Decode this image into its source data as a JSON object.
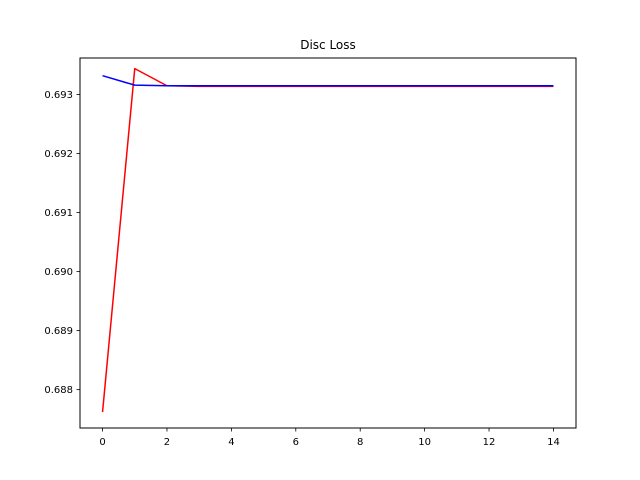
{
  "chart_data": {
    "type": "line",
    "title": "Disc Loss",
    "xlabel": "",
    "ylabel": "",
    "xlim": [
      -0.7,
      14.7
    ],
    "ylim": [
      0.68735,
      0.69362
    ],
    "x_ticks": [
      0,
      2,
      4,
      6,
      8,
      10,
      12,
      14
    ],
    "y_ticks": [
      0.688,
      0.689,
      0.69,
      0.691,
      0.692,
      0.693
    ],
    "grid": false,
    "legend": "none",
    "series": [
      {
        "color": "#ff0000",
        "x": [
          0,
          1,
          2,
          3,
          4,
          5,
          6,
          7,
          8,
          9,
          10,
          11,
          12,
          13,
          14
        ],
        "y": [
          0.68762,
          0.69344,
          0.69315,
          0.69314,
          0.69314,
          0.69314,
          0.69314,
          0.69314,
          0.69314,
          0.69314,
          0.69314,
          0.69314,
          0.69314,
          0.69314,
          0.69314
        ]
      },
      {
        "color": "#0000ff",
        "x": [
          0,
          1,
          2,
          3,
          4,
          5,
          6,
          7,
          8,
          9,
          10,
          11,
          12,
          13,
          14
        ],
        "y": [
          0.69332,
          0.69316,
          0.69315,
          0.69315,
          0.69315,
          0.69315,
          0.69315,
          0.69315,
          0.69315,
          0.69315,
          0.69315,
          0.69315,
          0.69315,
          0.69315,
          0.69315
        ]
      }
    ]
  }
}
